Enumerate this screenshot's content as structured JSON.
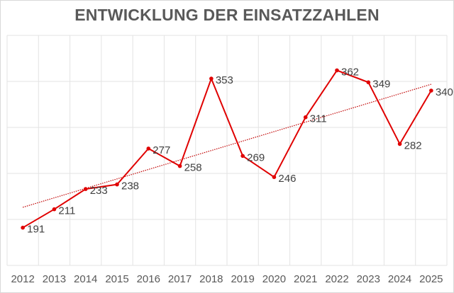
{
  "chart_data": {
    "type": "line",
    "title": "ENTWICKLUNG DER EINSATZZAHLEN",
    "categories": [
      "2012",
      "2013",
      "2014",
      "2015",
      "2016",
      "2017",
      "2018",
      "2019",
      "2020",
      "2021",
      "2022",
      "2023",
      "2024",
      "2025"
    ],
    "series": [
      {
        "values": [
          191,
          211,
          233,
          238,
          277,
          258,
          353,
          269,
          246,
          311,
          362,
          349,
          282,
          340
        ],
        "color": "#e00000"
      }
    ],
    "trendline": {
      "type": "linear",
      "style": "dotted",
      "color": "#c00000"
    },
    "data_labels": true,
    "ylim": [
      150,
      400
    ],
    "y_gridlines": [
      150,
      200,
      250,
      300,
      350,
      400
    ],
    "y_tick_labels_shown": false,
    "grid": true,
    "xlabel": "",
    "ylabel": ""
  }
}
